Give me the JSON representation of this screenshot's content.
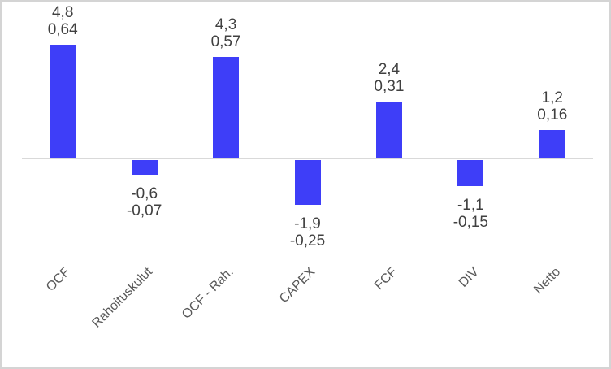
{
  "chart_data": {
    "type": "bar",
    "title": "",
    "xlabel": "",
    "ylabel": "",
    "categories": [
      "OCF",
      "Rahoituskulut",
      "OCF - Rah.",
      "CAPEX",
      "FCF",
      "DIV",
      "Netto"
    ],
    "series": [
      {
        "name": "primary-value",
        "values": [
          4.8,
          -0.6,
          4.3,
          -1.9,
          2.4,
          -1.1,
          1.2
        ],
        "labels": [
          "4,8",
          "-0,6",
          "4,3",
          "-1,9",
          "2,4",
          "-1,1",
          "1,2"
        ]
      },
      {
        "name": "secondary-value",
        "values": [
          0.64,
          -0.07,
          0.57,
          -0.25,
          0.31,
          -0.15,
          0.16
        ],
        "labels": [
          "0,64",
          "-0,07",
          "0,57",
          "-0,25",
          "0,31",
          "-0,15",
          "0,16"
        ]
      }
    ],
    "ylim": [
      -2.6,
      5.0
    ],
    "grid": "off",
    "legend": "none",
    "axis_ticks": "none",
    "colors": {
      "bar": "#3e3ef8",
      "axis_line": "#d9d9d9",
      "value_label": "#404040",
      "category_label": "#595959",
      "frame_border": "#d4d4d4",
      "background": "#ffffff"
    }
  }
}
